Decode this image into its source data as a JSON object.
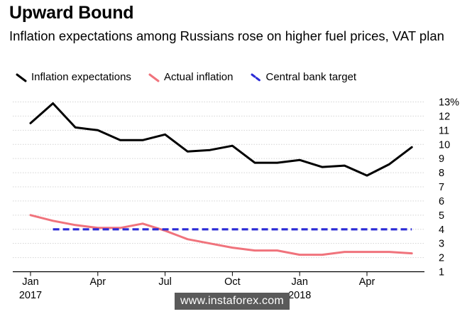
{
  "chart_data": {
    "type": "line",
    "title": "Upward Bound",
    "subtitle": "Inflation expectations among Russians rose on higher fuel prices, VAT plan",
    "x_ticks": [
      "Jan 2017",
      "Apr",
      "Jul",
      "Oct",
      "Jan 2018",
      "Apr"
    ],
    "y_ticks": [
      "1",
      "2",
      "3",
      "4",
      "5",
      "6",
      "7",
      "8",
      "9",
      "10",
      "11",
      "12",
      "13%"
    ],
    "ylim": [
      1,
      13
    ],
    "grid": true,
    "legend_position": "top",
    "series": [
      {
        "name": "Inflation expectations",
        "color": "#000000",
        "style": "solid",
        "x": [
          "2017-01",
          "2017-02",
          "2017-03",
          "2017-04",
          "2017-05",
          "2017-06",
          "2017-07",
          "2017-08",
          "2017-09",
          "2017-10",
          "2017-11",
          "2017-12",
          "2018-01",
          "2018-02",
          "2018-03",
          "2018-04",
          "2018-05",
          "2018-06"
        ],
        "values": [
          11.5,
          12.9,
          11.2,
          11.0,
          10.3,
          10.3,
          10.7,
          9.5,
          9.6,
          9.9,
          8.7,
          8.7,
          8.9,
          8.4,
          8.5,
          7.8,
          8.6,
          9.8
        ]
      },
      {
        "name": "Actual inflation",
        "color": "#f0737c",
        "style": "solid",
        "x": [
          "2017-01",
          "2017-02",
          "2017-03",
          "2017-04",
          "2017-05",
          "2017-06",
          "2017-07",
          "2017-08",
          "2017-09",
          "2017-10",
          "2017-11",
          "2017-12",
          "2018-01",
          "2018-02",
          "2018-03",
          "2018-04",
          "2018-05",
          "2018-06"
        ],
        "values": [
          5.0,
          4.6,
          4.3,
          4.1,
          4.1,
          4.4,
          3.9,
          3.3,
          3.0,
          2.7,
          2.5,
          2.5,
          2.2,
          2.2,
          2.4,
          2.4,
          2.4,
          2.3
        ]
      },
      {
        "name": "Central bank target",
        "color": "#2b2bd6",
        "style": "dashed",
        "x": [
          "2017-02",
          "2018-06"
        ],
        "values": [
          4.0,
          4.0
        ]
      }
    ]
  },
  "watermark": "www.instaforex.com"
}
